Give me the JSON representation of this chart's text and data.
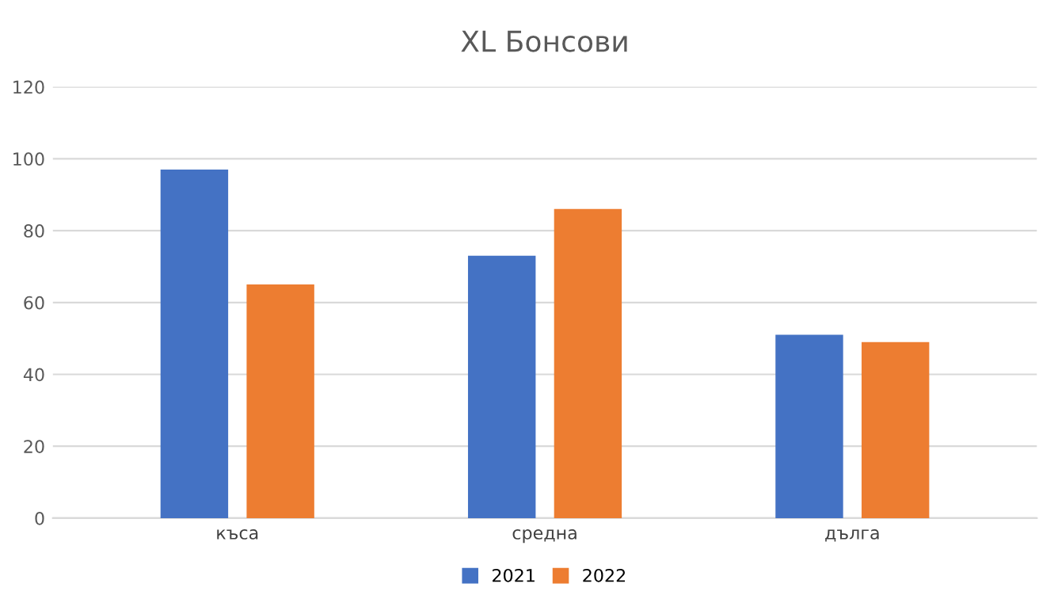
{
  "chart_data": {
    "type": "bar",
    "title": "XL Бонсови",
    "categories": [
      "къса",
      "средна",
      "дълга"
    ],
    "series": [
      {
        "name": "2021",
        "color": "#4472c4",
        "values": [
          97,
          73,
          51
        ]
      },
      {
        "name": "2022",
        "color": "#ed7d31",
        "values": [
          65,
          86,
          49
        ]
      }
    ],
    "ylim": [
      0,
      120
    ],
    "yticks": [
      0,
      20,
      40,
      60,
      80,
      100,
      120
    ],
    "grid": "y",
    "legend": "bottom"
  }
}
